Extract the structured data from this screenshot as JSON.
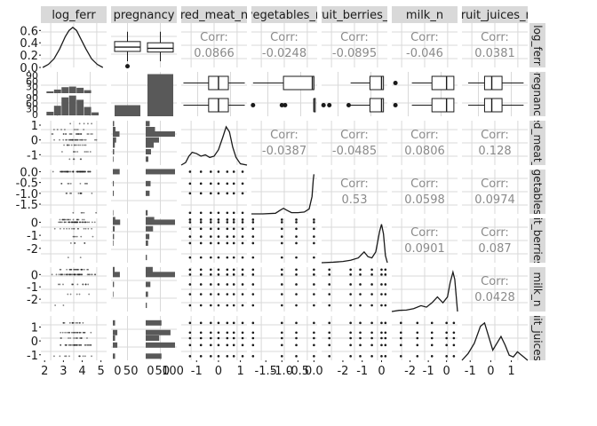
{
  "chart_data": {
    "type": "pairs-matrix",
    "variables": [
      "log_ferr",
      "pregnancy",
      "red_meat_n",
      "vegetables_n",
      "fruit_berries_n",
      "milk_n",
      "fruit_juices_n"
    ],
    "strip_top": [
      "log_ferr",
      "pregnancy",
      "red_meat_n",
      "vegetables_n",
      "fruit_berries_n",
      "milk_n",
      "fruit_juices_n"
    ],
    "strip_right": [
      "log_ferr",
      "pregnancy",
      "red_meat_n",
      "vegetables_n",
      "fruit_berries_n",
      "milk_n",
      "fruit_juices_n"
    ],
    "correlation_label": "Corr:",
    "correlations": [
      {
        "row": 0,
        "col": 2,
        "value": "0.0866"
      },
      {
        "row": 0,
        "col": 3,
        "value": "-0.0248"
      },
      {
        "row": 0,
        "col": 4,
        "value": "-0.0895"
      },
      {
        "row": 0,
        "col": 5,
        "value": "-0.046"
      },
      {
        "row": 0,
        "col": 6,
        "value": "0.0381"
      },
      {
        "row": 2,
        "col": 3,
        "value": "-0.0387"
      },
      {
        "row": 2,
        "col": 4,
        "value": "-0.0485"
      },
      {
        "row": 2,
        "col": 5,
        "value": "0.0806"
      },
      {
        "row": 2,
        "col": 6,
        "value": "0.128"
      },
      {
        "row": 3,
        "col": 4,
        "value": "0.53"
      },
      {
        "row": 3,
        "col": 5,
        "value": "0.0598"
      },
      {
        "row": 3,
        "col": 6,
        "value": "0.0974"
      },
      {
        "row": 4,
        "col": 5,
        "value": "0.0901"
      },
      {
        "row": 4,
        "col": 6,
        "value": "0.087"
      },
      {
        "row": 5,
        "col": 6,
        "value": "0.0428"
      }
    ],
    "x_ticks": [
      {
        "labels": [
          "2",
          "3",
          "4",
          "5"
        ],
        "values": [
          2,
          3,
          4,
          5
        ],
        "range": [
          1.8,
          5.3
        ]
      },
      {
        "labels": [
          "0",
          "50",
          "0",
          "50",
          "100"
        ],
        "values": [
          0,
          50,
          0,
          50,
          100
        ],
        "range": [
          0,
          100
        ]
      },
      {
        "labels": [
          "-1",
          "0",
          "1"
        ],
        "values": [
          -1,
          0,
          1
        ],
        "range": [
          -1.7,
          1.3
        ]
      },
      {
        "labels": [
          "-1.5",
          "-1.0",
          "-0.5",
          "0.0"
        ],
        "values": [
          -1.5,
          -1.0,
          -0.5,
          0.0
        ],
        "range": [
          -1.95,
          0.1
        ]
      },
      {
        "labels": [
          "-2",
          "-1",
          "0"
        ],
        "values": [
          -2,
          -1,
          0
        ],
        "range": [
          -3.1,
          0.3
        ]
      },
      {
        "labels": [
          "-2",
          "-1",
          "0"
        ],
        "values": [
          -2,
          -1,
          0
        ],
        "range": [
          -3.0,
          0.6
        ]
      },
      {
        "labels": [
          "-1",
          "0",
          "1"
        ],
        "values": [
          -1,
          0,
          1
        ],
        "range": [
          -1.4,
          1.8
        ]
      }
    ],
    "y_ticks": [
      {
        "labels": [
          "0.6",
          "0.4",
          "0.2",
          "0.0"
        ],
        "values": [
          0.6,
          0.4,
          0.2,
          0.0
        ],
        "range": [
          0,
          0.72
        ]
      },
      {
        "labels": [
          "90",
          "60",
          "30",
          "0",
          "90",
          "60",
          "30",
          "0"
        ],
        "values": [],
        "range": []
      },
      {
        "labels": [
          "1",
          "0",
          "-1"
        ],
        "values": [
          1,
          0,
          -1
        ],
        "range": [
          -1.7,
          1.3
        ]
      },
      {
        "labels": [
          "0.0",
          "-0.5",
          "-1.0",
          "-1.5"
        ],
        "values": [
          0.0,
          -0.5,
          -1.0,
          -1.5
        ],
        "range": [
          -1.95,
          0.1
        ]
      },
      {
        "labels": [
          "0",
          "-1",
          "-2"
        ],
        "values": [
          0,
          -1,
          -2
        ],
        "range": [
          -3.1,
          0.3
        ]
      },
      {
        "labels": [
          "0",
          "-1",
          "-2"
        ],
        "values": [
          0,
          -1,
          -2
        ],
        "range": [
          -3.0,
          0.6
        ]
      },
      {
        "labels": [
          "1",
          "0",
          "-1"
        ],
        "values": [
          1,
          0,
          -1
        ],
        "range": [
          -1.4,
          1.8
        ]
      }
    ],
    "density_log_ferr": {
      "x": [
        1.9,
        2.2,
        2.5,
        2.8,
        3.1,
        3.3,
        3.5,
        3.7,
        3.9,
        4.2,
        4.5,
        4.8,
        5.1
      ],
      "y": [
        0.0,
        0.05,
        0.14,
        0.3,
        0.5,
        0.6,
        0.65,
        0.6,
        0.48,
        0.3,
        0.14,
        0.05,
        0.0
      ]
    },
    "pregnancy_counts": {
      "levels": [
        0,
        1
      ],
      "counts": [
        25,
        95
      ],
      "ymax": 100
    },
    "pregnancy_hist_bars": [
      {
        "level": 0,
        "x0": 2.1,
        "x1": 2.5,
        "count": 3
      },
      {
        "level": 0,
        "x0": 2.5,
        "x1": 2.9,
        "count": 6
      },
      {
        "level": 0,
        "x0": 2.9,
        "x1": 3.3,
        "count": 10
      },
      {
        "level": 0,
        "x0": 3.3,
        "x1": 3.7,
        "count": 11
      },
      {
        "level": 0,
        "x0": 3.7,
        "x1": 4.1,
        "count": 9
      },
      {
        "level": 0,
        "x0": 4.1,
        "x1": 4.5,
        "count": 5
      },
      {
        "level": 1,
        "x0": 2.1,
        "x1": 2.5,
        "count": 6
      },
      {
        "level": 1,
        "x0": 2.5,
        "x1": 2.9,
        "count": 16
      },
      {
        "level": 1,
        "x0": 2.9,
        "x1": 3.3,
        "count": 30
      },
      {
        "level": 1,
        "x0": 3.3,
        "x1": 3.7,
        "count": 33
      },
      {
        "level": 1,
        "x0": 3.7,
        "x1": 4.1,
        "count": 26
      },
      {
        "level": 1,
        "x0": 4.1,
        "x1": 4.5,
        "count": 14
      },
      {
        "level": 1,
        "x0": 4.5,
        "x1": 4.9,
        "count": 5
      }
    ],
    "box_log_ferr_by_pregnancy": [
      {
        "level": 0,
        "q1": 0.26,
        "median": 0.33,
        "q3": 0.42,
        "whisker_low": 0.1,
        "whisker_high": 0.58,
        "outliers": [
          0.02
        ]
      },
      {
        "level": 1,
        "q1": 0.25,
        "median": 0.31,
        "q3": 0.4,
        "whisker_low": 0.1,
        "whisker_high": 0.58,
        "outliers": []
      }
    ],
    "box_pregnancy_rows": [
      {
        "level": 0,
        "col": 2,
        "q1": -0.45,
        "median": 0.0,
        "q3": 0.45,
        "whisker_low": -1.6,
        "whisker_high": 1.2,
        "outliers": []
      },
      {
        "level": 1,
        "col": 2,
        "q1": -0.45,
        "median": 0.0,
        "q3": 0.45,
        "whisker_low": -1.6,
        "whisker_high": 1.2,
        "outliers": []
      },
      {
        "level": 0,
        "col": 3,
        "q1": -0.95,
        "median": -0.05,
        "q3": 0.0,
        "whisker_low": -1.9,
        "whisker_high": 0.0,
        "outliers": []
      },
      {
        "level": 1,
        "col": 3,
        "q1": 0.0,
        "median": 0.0,
        "q3": 0.0,
        "whisker_low": 0.0,
        "whisker_high": 0.0,
        "outliers": [
          -1.9,
          -1.0,
          -0.9
        ]
      },
      {
        "level": 0,
        "col": 4,
        "q1": -0.6,
        "median": 0.0,
        "q3": 0.1,
        "whisker_low": -1.6,
        "whisker_high": 0.1,
        "outliers": []
      },
      {
        "level": 1,
        "col": 4,
        "q1": -0.6,
        "median": 0.0,
        "q3": 0.1,
        "whisker_low": -1.6,
        "whisker_high": 0.1,
        "outliers": [
          -3.0,
          -2.7,
          -1.7
        ]
      },
      {
        "level": 0,
        "col": 5,
        "q1": -0.8,
        "median": 0.0,
        "q3": 0.4,
        "whisker_low": -1.9,
        "whisker_high": 0.4,
        "outliers": [
          -2.8
        ]
      },
      {
        "level": 1,
        "col": 5,
        "q1": -0.8,
        "median": 0.0,
        "q3": 0.4,
        "whisker_low": -1.9,
        "whisker_high": 0.4,
        "outliers": [
          -2.8
        ]
      },
      {
        "level": 0,
        "col": 6,
        "q1": -0.3,
        "median": 0.05,
        "q3": 0.55,
        "whisker_low": -1.1,
        "whisker_high": 1.6,
        "outliers": []
      },
      {
        "level": 1,
        "col": 6,
        "q1": -0.3,
        "median": 0.05,
        "q3": 0.55,
        "whisker_low": -1.1,
        "whisker_high": 1.6,
        "outliers": []
      }
    ],
    "discrete_levels": [
      [
        -1.3,
        -0.8,
        -0.35,
        0.0,
        0.4,
        0.7,
        1.1
      ],
      [
        -1.9,
        -1.0,
        -0.55,
        0.0
      ],
      [
        -2.7,
        -1.6,
        -1.1,
        -0.5,
        0.0,
        0.2
      ],
      [
        -2.5,
        -1.6,
        -0.8,
        0.0,
        0.4
      ],
      [
        -1.1,
        -0.3,
        0.2,
        0.6,
        1.3
      ]
    ],
    "level_pcts": [
      [
        0.06,
        0.1,
        0.16,
        0.3,
        0.24,
        0.09,
        0.05
      ],
      [
        0.05,
        0.12,
        0.1,
        0.73
      ],
      [
        0.02,
        0.06,
        0.07,
        0.15,
        0.5,
        0.2
      ],
      [
        0.02,
        0.06,
        0.14,
        0.5,
        0.28
      ],
      [
        0.12,
        0.34,
        0.14,
        0.26,
        0.14
      ]
    ],
    "bar_counts_by_pregnancy": [
      {
        "col": 2,
        "level0": [
          1,
          2,
          3,
          5,
          10,
          4,
          2
        ],
        "level1": [
          4,
          8,
          12,
          20,
          44,
          14,
          6
        ]
      },
      {
        "col": 3,
        "level0": [
          1,
          2,
          2,
          14
        ],
        "level1": [
          4,
          8,
          10,
          60
        ]
      },
      {
        "col": 4,
        "level0": [
          0,
          1,
          2,
          3,
          12,
          4
        ],
        "level1": [
          2,
          4,
          6,
          12,
          48,
          14
        ]
      },
      {
        "col": 5,
        "level0": [
          0,
          1,
          2,
          12,
          3
        ],
        "level1": [
          2,
          4,
          8,
          50,
          12
        ]
      },
      {
        "col": 6,
        "level0": [
          2,
          4,
          2,
          4,
          2
        ],
        "level1": [
          14,
          26,
          12,
          22,
          14
        ]
      }
    ],
    "densities": [
      {
        "col": 2,
        "x": [
          -1.7,
          -1.5,
          -1.35,
          -1.2,
          -1.0,
          -0.8,
          -0.6,
          -0.4,
          -0.2,
          0.0,
          0.2,
          0.35,
          0.5,
          0.65,
          0.8,
          1.0,
          1.3
        ],
        "y": [
          0.0,
          0.1,
          0.35,
          0.5,
          0.45,
          0.35,
          0.4,
          0.3,
          0.35,
          0.6,
          1.1,
          1.5,
          1.3,
          0.7,
          0.3,
          0.05,
          0.0
        ],
        "ymax": 1.6
      },
      {
        "col": 3,
        "x": [
          -1.95,
          -1.6,
          -1.2,
          -1.05,
          -0.95,
          -0.85,
          -0.7,
          -0.5,
          -0.3,
          -0.15,
          -0.06,
          -0.02,
          0.0
        ],
        "y": [
          0.0,
          0.0,
          0.05,
          0.3,
          0.45,
          0.3,
          0.1,
          0.1,
          0.15,
          0.4,
          1.4,
          2.8,
          3.2
        ],
        "ymax": 3.3
      },
      {
        "col": 4,
        "x": [
          -3.1,
          -2.5,
          -2.0,
          -1.6,
          -1.2,
          -0.9,
          -0.7,
          -0.5,
          -0.3,
          -0.1,
          0.0,
          0.1,
          0.2,
          0.3
        ],
        "y": [
          0.0,
          0.02,
          0.05,
          0.1,
          0.2,
          0.45,
          0.25,
          0.2,
          0.45,
          1.3,
          1.6,
          1.2,
          0.3,
          0.0
        ],
        "ymax": 1.7
      },
      {
        "col": 5,
        "x": [
          -3.0,
          -2.6,
          -2.2,
          -1.8,
          -1.4,
          -1.1,
          -0.8,
          -0.5,
          -0.2,
          0.05,
          0.2,
          0.35,
          0.45,
          0.6
        ],
        "y": [
          0.0,
          0.04,
          0.05,
          0.1,
          0.2,
          0.15,
          0.3,
          0.5,
          0.3,
          0.5,
          1.0,
          1.35,
          1.1,
          0.0
        ],
        "ymax": 1.4
      },
      {
        "col": 6,
        "x": [
          -1.4,
          -1.1,
          -0.8,
          -0.5,
          -0.3,
          -0.1,
          0.1,
          0.3,
          0.5,
          0.7,
          0.9,
          1.1,
          1.3,
          1.6,
          1.8
        ],
        "y": [
          0.0,
          0.2,
          0.5,
          1.0,
          1.1,
          0.7,
          0.3,
          0.5,
          0.7,
          0.45,
          0.15,
          0.1,
          0.25,
          0.1,
          0.0
        ],
        "ymax": 1.2
      }
    ],
    "colors": {
      "panel_bg": "#ffffff",
      "grid": "#d9d9d9",
      "strip_bg": "#d9d9d9",
      "ink": "#1a1a1a",
      "bar_fill": "#595959",
      "corr_text": "#8a8a8a",
      "axis_text": "#1a1a1a"
    }
  }
}
